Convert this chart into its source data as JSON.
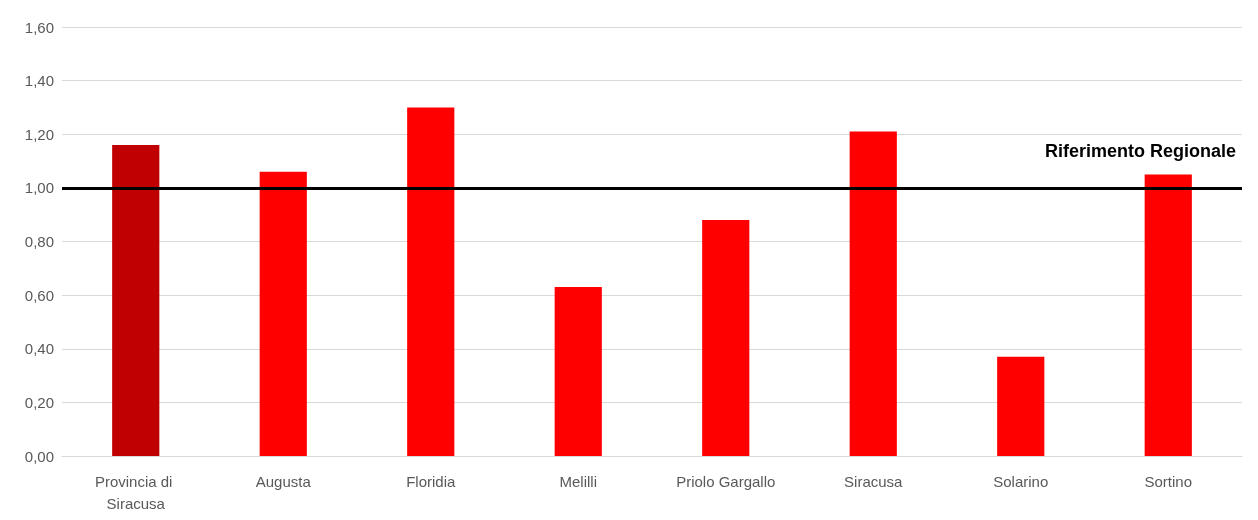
{
  "chart_data": {
    "type": "bar",
    "categories": [
      "Provincia di Siracusa",
      "Augusta",
      "Floridia",
      "Melilli",
      "Priolo Gargallo",
      "Siracusa",
      "Solarino",
      "Sortino"
    ],
    "values": [
      1.16,
      1.06,
      1.3,
      0.63,
      0.88,
      1.21,
      0.37,
      1.05
    ],
    "colors": [
      "#c00000",
      "#ff0000",
      "#ff0000",
      "#ff0000",
      "#ff0000",
      "#ff0000",
      "#ff0000",
      "#ff0000"
    ],
    "ylim": [
      0,
      1.6
    ],
    "yticks": [
      {
        "value": 0,
        "label": "0,00"
      },
      {
        "value": 0.2,
        "label": "0,20"
      },
      {
        "value": 0.4,
        "label": "0,40"
      },
      {
        "value": 0.6,
        "label": "0,60"
      },
      {
        "value": 0.8,
        "label": "0,80"
      },
      {
        "value": 1.0,
        "label": "1,00"
      },
      {
        "value": 1.2,
        "label": "1,20"
      },
      {
        "value": 1.4,
        "label": "1,40"
      },
      {
        "value": 1.6,
        "label": "1,60"
      }
    ],
    "grid": "y",
    "ref_lines": [
      {
        "axis": "y",
        "value": 1.0,
        "label": "Riferimento Regionale",
        "color": "#000000"
      }
    ]
  }
}
